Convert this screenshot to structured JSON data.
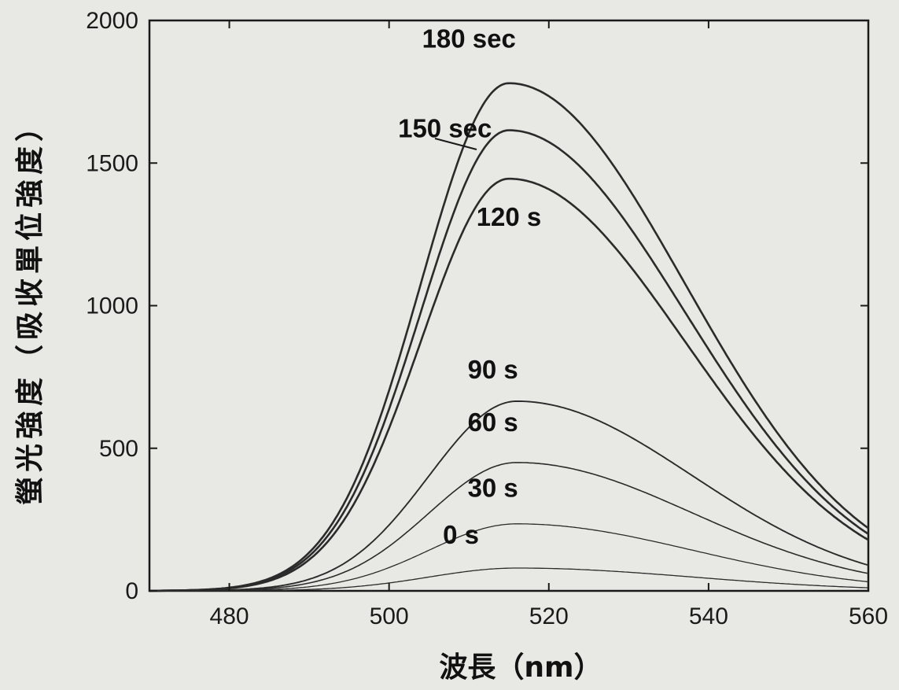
{
  "chart_data": {
    "type": "line",
    "xlabel": "波長（nm）",
    "ylabel": "螢光強度（吸收單位強度）",
    "xlim": [
      470,
      560
    ],
    "ylim": [
      0,
      2000
    ],
    "xticks": [
      480,
      500,
      520,
      540,
      560
    ],
    "yticks": [
      0,
      500,
      1000,
      1500,
      2000
    ],
    "grid": false,
    "line_color": "#2b2b2b",
    "background": "#e8e9e4",
    "series": [
      {
        "name": "0 s",
        "peak_x": 516,
        "peak_y": 80
      },
      {
        "name": "30 s",
        "peak_x": 516,
        "peak_y": 235
      },
      {
        "name": "60 s",
        "peak_x": 516,
        "peak_y": 450
      },
      {
        "name": "90 s",
        "peak_x": 516,
        "peak_y": 665
      },
      {
        "name": "120 s",
        "peak_x": 515,
        "peak_y": 1445
      },
      {
        "name": "150 sec",
        "peak_x": 515,
        "peak_y": 1615
      },
      {
        "name": "180 sec",
        "peak_x": 515,
        "peak_y": 1780
      }
    ]
  }
}
